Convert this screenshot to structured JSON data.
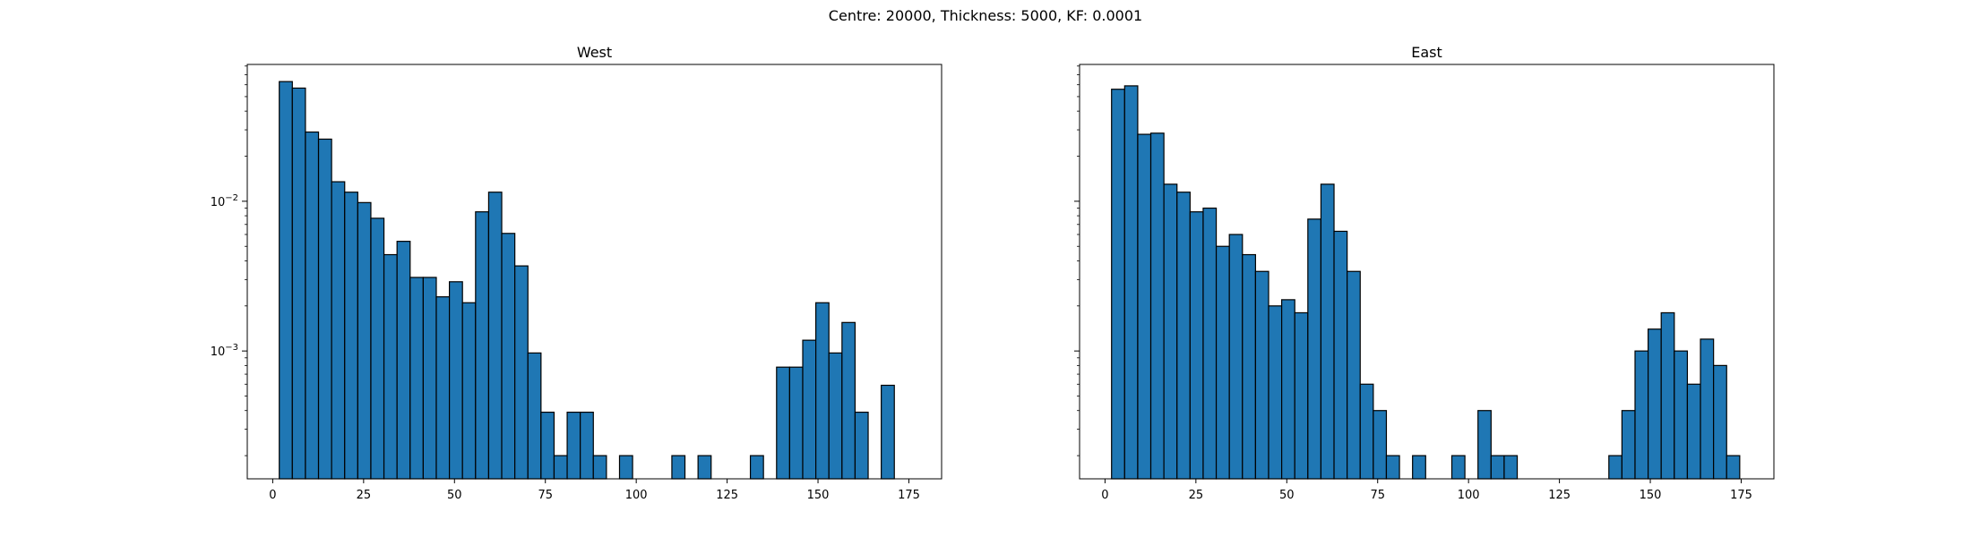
{
  "figure": {
    "title": "Centre: 20000, Thickness: 5000, KF: 0.0001"
  },
  "chart_data": [
    {
      "type": "bar",
      "subtype": "histogram",
      "title": "West",
      "xlabel": "",
      "ylabel": "",
      "yscale": "log",
      "xlim": [
        -7,
        184
      ],
      "ylim": [
        0.00014,
        0.082
      ],
      "xticks": [
        0,
        25,
        50,
        75,
        100,
        125,
        150,
        175
      ],
      "yticks": [
        {
          "value": 0.01,
          "base": "10",
          "exp": "−2"
        },
        {
          "value": 0.001,
          "base": "10",
          "exp": "−3"
        }
      ],
      "bin_width": 3.6,
      "bin_starts": [
        1.8,
        5.4,
        9.0,
        12.6,
        16.2,
        19.8,
        23.4,
        27.0,
        30.6,
        34.2,
        37.8,
        41.4,
        45.0,
        48.6,
        52.2,
        55.8,
        59.4,
        63.0,
        66.6,
        70.2,
        73.8,
        77.4,
        81.0,
        84.6,
        88.2,
        91.8,
        95.4,
        99.0,
        102.6,
        106.2,
        109.8,
        113.4,
        117.0,
        120.6,
        124.2,
        127.8,
        131.4,
        135.0,
        138.6,
        142.2,
        145.8,
        149.4,
        153.0,
        156.6,
        160.2,
        163.8,
        167.4,
        171.0
      ],
      "values": [
        0.063,
        0.057,
        0.029,
        0.026,
        0.0135,
        0.0115,
        0.0098,
        0.0077,
        0.0044,
        0.0054,
        0.0031,
        0.0031,
        0.0023,
        0.0029,
        0.0021,
        0.0085,
        0.0115,
        0.0061,
        0.0037,
        0.00097,
        0.00039,
        0.0002,
        0.00039,
        0.00039,
        0.0002,
        0,
        0.0002,
        0,
        0,
        0,
        0.0002,
        0,
        0.0002,
        0,
        0,
        0,
        0.0002,
        0,
        0.00078,
        0.00078,
        0.00118,
        0.0021,
        0.00097,
        0.00155,
        0.00039,
        0,
        0.00059,
        0
      ],
      "color": "#1f77b4",
      "edgecolor": "#000000",
      "grid": false
    },
    {
      "type": "bar",
      "subtype": "histogram",
      "title": "East",
      "xlabel": "",
      "ylabel": "",
      "yscale": "log",
      "xlim": [
        -7,
        184
      ],
      "ylim": [
        0.00014,
        0.082
      ],
      "xticks": [
        0,
        25,
        50,
        75,
        100,
        125,
        150,
        175
      ],
      "yticks": [
        {
          "value": 0.01,
          "base": "",
          "exp": ""
        },
        {
          "value": 0.001,
          "base": "",
          "exp": ""
        }
      ],
      "bin_width": 3.6,
      "bin_starts": [
        1.8,
        5.4,
        9.0,
        12.6,
        16.2,
        19.8,
        23.4,
        27.0,
        30.6,
        34.2,
        37.8,
        41.4,
        45.0,
        48.6,
        52.2,
        55.8,
        59.4,
        63.0,
        66.6,
        70.2,
        73.8,
        77.4,
        81.0,
        84.6,
        88.2,
        91.8,
        95.4,
        99.0,
        102.6,
        106.2,
        109.8,
        113.4,
        117.0,
        120.6,
        124.2,
        127.8,
        131.4,
        135.0,
        138.6,
        142.2,
        145.8,
        149.4,
        153.0,
        156.6,
        160.2,
        163.8,
        167.4,
        171.0
      ],
      "values": [
        0.056,
        0.059,
        0.028,
        0.0285,
        0.013,
        0.0115,
        0.0085,
        0.009,
        0.005,
        0.006,
        0.0044,
        0.0034,
        0.002,
        0.0022,
        0.0018,
        0.0076,
        0.013,
        0.0063,
        0.0034,
        0.0006,
        0.0004,
        0.0002,
        0,
        0.0002,
        0,
        0,
        0.0002,
        0,
        0.0004,
        0.0002,
        0.0002,
        0,
        0,
        0,
        0,
        0,
        0,
        0,
        0.0002,
        0.0004,
        0.001,
        0.0014,
        0.0018,
        0.001,
        0.0006,
        0.0012,
        0.0008,
        0.0002
      ],
      "color": "#1f77b4",
      "edgecolor": "#000000",
      "grid": false
    }
  ]
}
